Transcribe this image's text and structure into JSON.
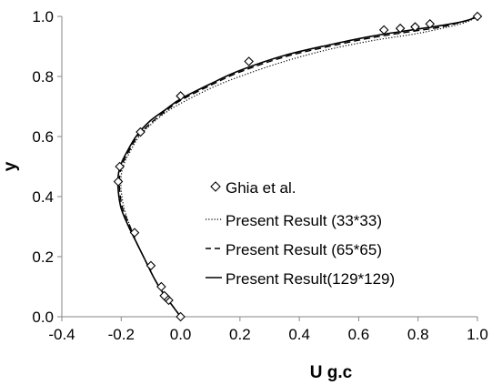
{
  "chart_data": {
    "type": "line",
    "title": "",
    "xlabel": "U g.c",
    "ylabel": "y",
    "xlim": [
      -0.4,
      1.0
    ],
    "ylim": [
      0.0,
      1.0
    ],
    "x_ticks": [
      "-0.4",
      "-0.2",
      "0.0",
      "0.2",
      "0.4",
      "0.6",
      "0.8",
      "1.0"
    ],
    "y_ticks": [
      "0.0",
      "0.2",
      "0.4",
      "0.6",
      "0.8",
      "1.0"
    ],
    "grid": false,
    "legend_position": "center-right",
    "series": [
      {
        "name": "Ghia et al.",
        "style": "diamond-markers",
        "color": "#000000",
        "points": [
          [
            0.0,
            0.0
          ],
          [
            -0.04,
            0.055
          ],
          [
            -0.05,
            0.065
          ],
          [
            -0.055,
            0.07
          ],
          [
            -0.065,
            0.1
          ],
          [
            -0.1,
            0.17
          ],
          [
            -0.155,
            0.28
          ],
          [
            -0.21,
            0.45
          ],
          [
            -0.205,
            0.5
          ],
          [
            -0.135,
            0.615
          ],
          [
            0.0,
            0.735
          ],
          [
            0.23,
            0.85
          ],
          [
            0.685,
            0.955
          ],
          [
            0.74,
            0.96
          ],
          [
            0.79,
            0.965
          ],
          [
            0.84,
            0.975
          ],
          [
            1.0,
            1.0
          ]
        ]
      },
      {
        "name": "Present Result (33*33)",
        "style": "dotted",
        "color": "#000000",
        "points": [
          [
            0.0,
            0.0
          ],
          [
            -0.03,
            0.04
          ],
          [
            -0.06,
            0.08
          ],
          [
            -0.09,
            0.13
          ],
          [
            -0.12,
            0.19
          ],
          [
            -0.15,
            0.25
          ],
          [
            -0.17,
            0.3
          ],
          [
            -0.19,
            0.36
          ],
          [
            -0.2,
            0.42
          ],
          [
            -0.2,
            0.47
          ],
          [
            -0.19,
            0.51
          ],
          [
            -0.17,
            0.55
          ],
          [
            -0.14,
            0.6
          ],
          [
            -0.1,
            0.64
          ],
          [
            -0.05,
            0.68
          ],
          [
            0.0,
            0.71
          ],
          [
            0.1,
            0.76
          ],
          [
            0.2,
            0.8
          ],
          [
            0.35,
            0.85
          ],
          [
            0.5,
            0.89
          ],
          [
            0.65,
            0.92
          ],
          [
            0.78,
            0.94
          ],
          [
            0.88,
            0.96
          ],
          [
            0.96,
            0.98
          ],
          [
            1.0,
            1.0
          ]
        ]
      },
      {
        "name": "Present Result (65*65)",
        "style": "dashed",
        "color": "#000000",
        "points": [
          [
            0.0,
            0.0
          ],
          [
            -0.03,
            0.04
          ],
          [
            -0.06,
            0.08
          ],
          [
            -0.09,
            0.13
          ],
          [
            -0.12,
            0.19
          ],
          [
            -0.15,
            0.25
          ],
          [
            -0.17,
            0.3
          ],
          [
            -0.195,
            0.36
          ],
          [
            -0.205,
            0.42
          ],
          [
            -0.205,
            0.47
          ],
          [
            -0.195,
            0.51
          ],
          [
            -0.175,
            0.55
          ],
          [
            -0.145,
            0.6
          ],
          [
            -0.1,
            0.645
          ],
          [
            -0.05,
            0.685
          ],
          [
            0.0,
            0.72
          ],
          [
            0.1,
            0.77
          ],
          [
            0.2,
            0.815
          ],
          [
            0.35,
            0.865
          ],
          [
            0.5,
            0.9
          ],
          [
            0.65,
            0.93
          ],
          [
            0.78,
            0.95
          ],
          [
            0.88,
            0.965
          ],
          [
            0.96,
            0.985
          ],
          [
            1.0,
            1.0
          ]
        ]
      },
      {
        "name": "Present Result(129*129)",
        "style": "solid",
        "color": "#000000",
        "points": [
          [
            0.0,
            0.0
          ],
          [
            -0.03,
            0.04
          ],
          [
            -0.06,
            0.08
          ],
          [
            -0.09,
            0.13
          ],
          [
            -0.12,
            0.19
          ],
          [
            -0.15,
            0.25
          ],
          [
            -0.175,
            0.3
          ],
          [
            -0.2,
            0.36
          ],
          [
            -0.21,
            0.42
          ],
          [
            -0.21,
            0.47
          ],
          [
            -0.2,
            0.51
          ],
          [
            -0.18,
            0.55
          ],
          [
            -0.15,
            0.6
          ],
          [
            -0.105,
            0.65
          ],
          [
            -0.05,
            0.69
          ],
          [
            0.0,
            0.725
          ],
          [
            0.1,
            0.775
          ],
          [
            0.2,
            0.82
          ],
          [
            0.35,
            0.87
          ],
          [
            0.5,
            0.905
          ],
          [
            0.65,
            0.935
          ],
          [
            0.78,
            0.955
          ],
          [
            0.88,
            0.97
          ],
          [
            0.96,
            0.985
          ],
          [
            1.0,
            1.0
          ]
        ]
      }
    ]
  }
}
